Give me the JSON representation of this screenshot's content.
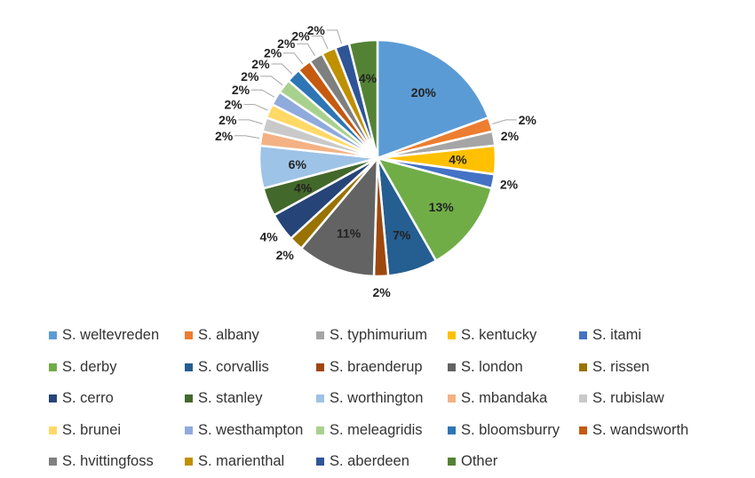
{
  "chart_data": {
    "type": "pie",
    "slices": [
      {
        "name": "S. weltevreden",
        "value": 20,
        "label": "20%",
        "color": "#5B9BD5"
      },
      {
        "name": "S. albany",
        "value": 2,
        "label": "2%",
        "color": "#ED7D31"
      },
      {
        "name": "S. typhimurium",
        "value": 2,
        "label": "2%",
        "color": "#A5A5A5"
      },
      {
        "name": "S. kentucky",
        "value": 4,
        "label": "4%",
        "color": "#FFC000"
      },
      {
        "name": "S. itami",
        "value": 2,
        "label": "2%",
        "color": "#4472C4"
      },
      {
        "name": "S. derby",
        "value": 13,
        "label": "13%",
        "color": "#70AD47"
      },
      {
        "name": "S. corvallis",
        "value": 7,
        "label": "7%",
        "color": "#255E91"
      },
      {
        "name": "S. braenderup",
        "value": 2,
        "label": "2%",
        "color": "#9E480E"
      },
      {
        "name": "S. london",
        "value": 11,
        "label": "11%",
        "color": "#636363"
      },
      {
        "name": "S. rissen",
        "value": 2,
        "label": "2%",
        "color": "#997300"
      },
      {
        "name": "S. cerro",
        "value": 4,
        "label": "4%",
        "color": "#264478"
      },
      {
        "name": "S. stanley",
        "value": 4,
        "label": "4%",
        "color": "#43682B"
      },
      {
        "name": "S. worthington",
        "value": 6,
        "label": "6%",
        "color": "#9DC3E6"
      },
      {
        "name": "S. mbandaka",
        "value": 2,
        "label": "2%",
        "color": "#F4B183"
      },
      {
        "name": "S. rubislaw",
        "value": 2,
        "label": "2%",
        "color": "#C9C9C9"
      },
      {
        "name": "S. brunei",
        "value": 2,
        "label": "2%",
        "color": "#FFD966"
      },
      {
        "name": "S. westhampton",
        "value": 2,
        "label": "2%",
        "color": "#8FAADC"
      },
      {
        "name": "S. meleagridis",
        "value": 2,
        "label": "2%",
        "color": "#A9D18E"
      },
      {
        "name": "S. bloomsburry",
        "value": 2,
        "label": "2%",
        "color": "#2E75B6"
      },
      {
        "name": "S. wandsworth",
        "value": 2,
        "label": "2%",
        "color": "#C55A11"
      },
      {
        "name": "S. hvittingfoss",
        "value": 2,
        "label": "2%",
        "color": "#7F7F7F"
      },
      {
        "name": "S. marienthal",
        "value": 2,
        "label": "2%",
        "color": "#BF9000"
      },
      {
        "name": "S. aberdeen",
        "value": 2,
        "label": "2%",
        "color": "#2F5597"
      },
      {
        "name": "Other",
        "value": 4,
        "label": "4%",
        "color": "#548235"
      }
    ],
    "legend_position": "bottom",
    "start_angle": "top",
    "direction": "clockwise"
  }
}
